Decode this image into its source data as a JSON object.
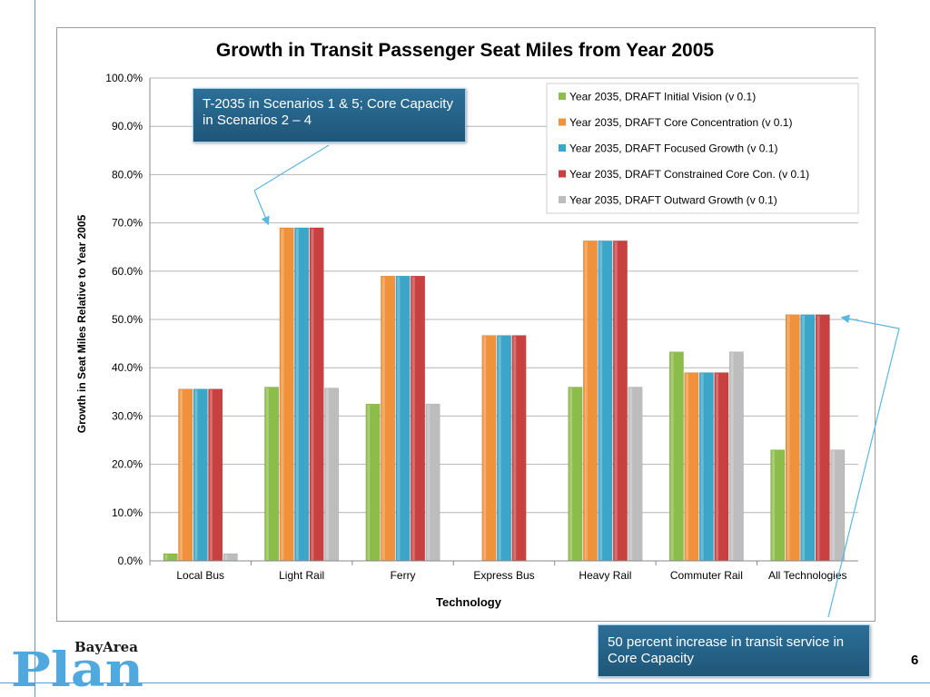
{
  "slide": {
    "page_number": "6",
    "logo_small": "BayArea",
    "logo_big": "Plan"
  },
  "callouts": {
    "top": "T-2035 in Scenarios 1 & 5; Core Capacity in Scenarios 2 – 4",
    "bottom": "50 percent increase in transit service in Core Capacity"
  },
  "colors": {
    "accent_line": "#5b9bd5",
    "callout_bg": "#1f5678"
  },
  "chart_data": {
    "type": "bar",
    "title": "Growth in Transit Passenger Seat Miles from Year 2005",
    "xlabel": "Technology",
    "ylabel": "Growth in Seat Miles Relative to Year 2005",
    "ylim": [
      0,
      100
    ],
    "ytick_labels": [
      "0.0%",
      "10.0%",
      "20.0%",
      "30.0%",
      "40.0%",
      "50.0%",
      "60.0%",
      "70.0%",
      "80.0%",
      "90.0%",
      "100.0%"
    ],
    "grid": true,
    "legend_position": "top-right",
    "categories": [
      "Local Bus",
      "Light Rail",
      "Ferry",
      "Express Bus",
      "Heavy Rail",
      "Commuter Rail",
      "All Technologies"
    ],
    "series": [
      {
        "name": "Year 2035, DRAFT Initial Vision (v 0.1)",
        "color": "#8cbd4a",
        "values": [
          1.5,
          36.0,
          32.5,
          0.0,
          36.0,
          43.3,
          23.0
        ]
      },
      {
        "name": "Year 2035, DRAFT Core Concentration (v 0.1)",
        "color": "#f0913c",
        "values": [
          35.6,
          69.0,
          59.0,
          46.7,
          66.3,
          39.0,
          51.0
        ]
      },
      {
        "name": "Year 2035, DRAFT Focused Growth (v 0.1)",
        "color": "#3ca6c8",
        "values": [
          35.6,
          69.0,
          59.0,
          46.7,
          66.3,
          39.0,
          51.0
        ]
      },
      {
        "name": "Year 2035, DRAFT Constrained Core Con. (v 0.1)",
        "color": "#c84040",
        "values": [
          35.6,
          69.0,
          59.0,
          46.7,
          66.3,
          39.0,
          51.0
        ]
      },
      {
        "name": "Year 2035, DRAFT Outward Growth (v 0.1)",
        "color": "#bdbdbd",
        "values": [
          1.5,
          35.8,
          32.5,
          0.0,
          36.0,
          43.3,
          23.0
        ]
      }
    ]
  }
}
